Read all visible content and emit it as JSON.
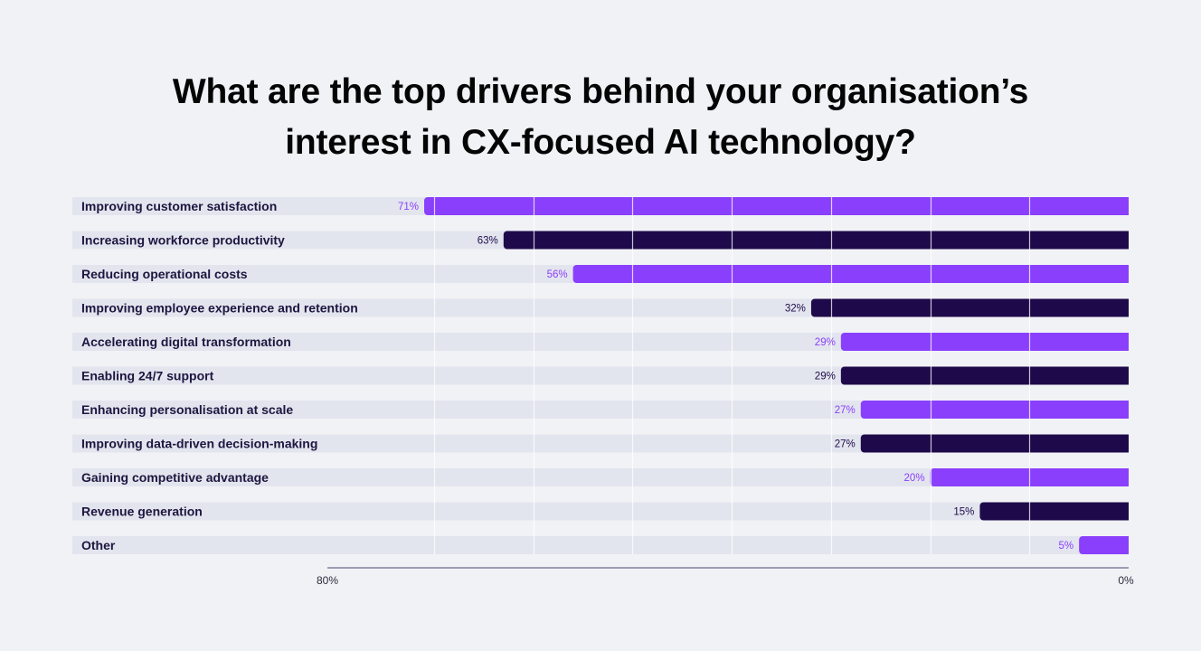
{
  "title_line1": "What are the top drivers behind your organisation’s",
  "title_line2": "interest in CX-focused AI technology?",
  "colors": {
    "purple": "#8a3ffc",
    "dark": "#1e0a4a",
    "track": "#e3e5ee",
    "background": "#f1f2f6"
  },
  "chart_data": {
    "type": "bar",
    "orientation": "horizontal",
    "direction": "right-to-left",
    "title": "What are the top drivers behind your organisation’s interest in CX-focused AI technology?",
    "categories": [
      "Improving customer satisfaction",
      "Increasing workforce productivity",
      "Reducing operational costs",
      "Improving employee experience and retention",
      "Accelerating digital transformation",
      "Enabling 24/7 support",
      "Enhancing personalisation at scale",
      "Improving data-driven decision-making",
      "Gaining competitive advantage",
      "Revenue generation",
      "Other"
    ],
    "values": [
      71,
      63,
      56,
      32,
      29,
      29,
      27,
      27,
      20,
      15,
      5
    ],
    "value_labels": [
      "71%",
      "63%",
      "56%",
      "32%",
      "29%",
      "29%",
      "27%",
      "27%",
      "20%",
      "15%",
      "5%"
    ],
    "bar_colors": [
      "purple",
      "dark",
      "purple",
      "dark",
      "purple",
      "dark",
      "purple",
      "dark",
      "purple",
      "dark",
      "purple"
    ],
    "xlim": [
      80,
      0
    ],
    "ticks": [
      80,
      0
    ],
    "tick_labels": [
      "80%",
      "0%"
    ],
    "grid": true,
    "grid_step": 10,
    "xlabel": "",
    "ylabel": ""
  }
}
